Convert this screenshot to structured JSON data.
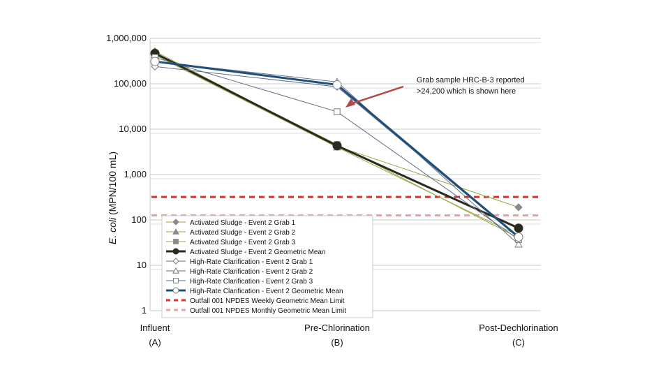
{
  "chart_data": {
    "type": "line",
    "y_scale": "log",
    "ylim": [
      1,
      1000000
    ],
    "ylabel_italic": "E. coli",
    "ylabel_rest": " (MPN/100 mL)",
    "y_ticks": [
      "1",
      "10",
      "100",
      "1,000",
      "10,000",
      "100,000",
      "1,000,000"
    ],
    "categories": [
      {
        "name": "Influent",
        "code": "(A)"
      },
      {
        "name": "Pre-Chlorination",
        "code": "(B)"
      },
      {
        "name": "Post-Dechlorination",
        "code": "(C)"
      }
    ],
    "series": [
      {
        "name": "Activated Sludge - Event 2 Grab 1",
        "values": [
          520000,
          4200,
          190
        ],
        "color": "#9aa641",
        "marker": "diamond",
        "marker_color": "#8a8a8a",
        "filled": true,
        "width": 1
      },
      {
        "name": "Activated Sludge - Event 2 Grab 2",
        "values": [
          430000,
          4000,
          45
        ],
        "color": "#9aa641",
        "marker": "triangle",
        "marker_color": "#8a8a8a",
        "filled": true,
        "width": 1
      },
      {
        "name": "Activated Sludge - Event 2 Grab 3",
        "values": [
          460000,
          4600,
          40
        ],
        "color": "#9aa641",
        "marker": "square",
        "marker_color": "#8a8a8a",
        "filled": true,
        "width": 1
      },
      {
        "name": "Activated Sludge - Event 2 Geometric Mean",
        "values": [
          470000,
          4300,
          66
        ],
        "color": "#2a2a1e",
        "marker": "circle",
        "marker_color": "#2a2a1e",
        "filled": true,
        "width": 3
      },
      {
        "name": "High-Rate Clarification - Event 2 Grab 1",
        "values": [
          240000,
          86000,
          40
        ],
        "color": "#5f6f88",
        "marker": "diamond",
        "marker_color": "#7a7a7a",
        "filled": false,
        "width": 1
      },
      {
        "name": "High-Rate Clarification - Event 2 Grab 2",
        "values": [
          310000,
          110000,
          29
        ],
        "color": "#5f6f88",
        "marker": "triangle",
        "marker_color": "#7a7a7a",
        "filled": false,
        "width": 1
      },
      {
        "name": "High-Rate Clarification - Event 2 Grab 3",
        "values": [
          380000,
          24200,
          37
        ],
        "color": "#5f6f88",
        "marker": "square",
        "marker_color": "#7a7a7a",
        "filled": false,
        "width": 1
      },
      {
        "name": "High-Rate Clarification - Event 2 Geometric Mean",
        "values": [
          310000,
          95000,
          42
        ],
        "color": "#1f4e79",
        "marker": "circle",
        "marker_color": "#7a7a7a",
        "filled": false,
        "width": 3
      }
    ],
    "limits": [
      {
        "name": "Outfall 001 NPDES Weekly Geometric Mean Limit",
        "value": 320,
        "color": "#e02b2b"
      },
      {
        "name": "Outfall 001 NPDES Monthly Geometric Mean Limit",
        "value": 126,
        "color": "#f2a1a1"
      }
    ],
    "annotation": {
      "lines": [
        "Grab sample HRC-B-3 reported",
        ">24,200 which is shown here"
      ],
      "arrow_color": "#b04a4a",
      "target_series": 6,
      "target_index": 1
    },
    "grid": true
  }
}
